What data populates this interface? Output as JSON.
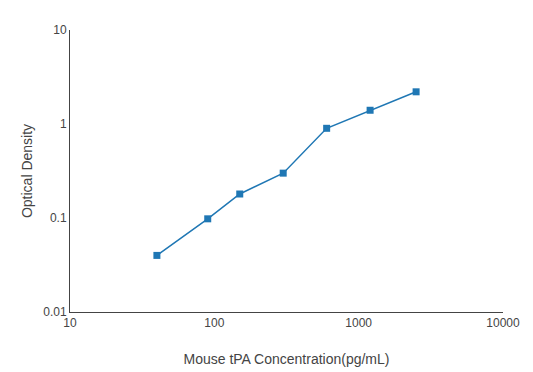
{
  "chart_data": {
    "type": "line",
    "xlabel": "Mouse tPA Concentration(pg/mL)",
    "ylabel": "Optical Density",
    "x": [
      40,
      90,
      150,
      300,
      600,
      1200,
      2500
    ],
    "values": [
      0.04,
      0.098,
      0.18,
      0.3,
      0.9,
      1.4,
      2.2
    ],
    "xlim": [
      10,
      10000
    ],
    "ylim": [
      0.01,
      10
    ],
    "xticks": [
      10,
      100,
      1000,
      10000
    ],
    "yticks": [
      0.01,
      0.1,
      1,
      10
    ],
    "log": true,
    "marker": "square",
    "grid": false
  }
}
